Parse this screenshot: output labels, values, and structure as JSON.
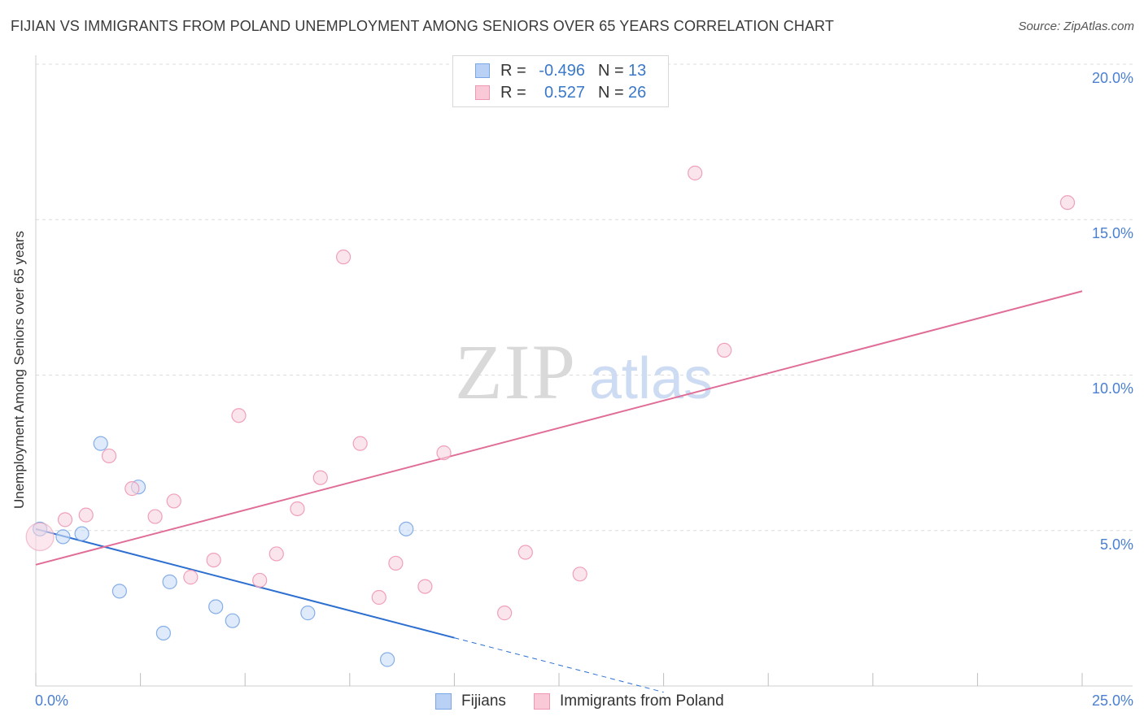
{
  "title": "FIJIAN VS IMMIGRANTS FROM POLAND UNEMPLOYMENT AMONG SENIORS OVER 65 YEARS CORRELATION CHART",
  "source": "Source: ZipAtlas.com",
  "watermark": {
    "zip": "ZIP",
    "atlas": "atlas"
  },
  "legend_top": {
    "rows": [
      {
        "r_label": "R =",
        "r_value": "-0.496",
        "n_label": "N =",
        "n_value": "13",
        "swatch_fill": "#b9d1f4",
        "swatch_border": "#7aa6e6"
      },
      {
        "r_label": "R =",
        "r_value": "0.527",
        "n_label": "N =",
        "n_value": "26",
        "swatch_fill": "#f9c9d8",
        "swatch_border": "#ee97b3"
      }
    ]
  },
  "legend_bottom": [
    {
      "label": "Fijians",
      "swatch_fill": "#b9d1f4",
      "swatch_border": "#7aa6e6"
    },
    {
      "label": "Immigrants from Poland",
      "swatch_fill": "#f9c9d8",
      "swatch_border": "#ee97b3"
    }
  ],
  "chart_data": {
    "type": "scatter",
    "title": "FIJIAN VS IMMIGRANTS FROM POLAND UNEMPLOYMENT AMONG SENIORS OVER 65 YEARS CORRELATION CHART",
    "xlabel": "",
    "ylabel": "Unemployment Among Seniors over 65 years",
    "xlim": [
      0,
      25
    ],
    "ylim": [
      0,
      20
    ],
    "x_tick_labels": [
      "0.0%",
      "25.0%"
    ],
    "y_ticks": [
      {
        "value": 5,
        "label": "5.0%"
      },
      {
        "value": 10,
        "label": "10.0%"
      },
      {
        "value": 15,
        "label": "15.0%"
      },
      {
        "value": 20,
        "label": "20.0%"
      }
    ],
    "grid": true,
    "legend_position": "bottom",
    "series": [
      {
        "name": "Fijians",
        "color": "#7aa6e6",
        "fill": "#c9dcf6",
        "line_color": "#2c6fd0",
        "r": -0.496,
        "n": 13,
        "trend": {
          "x0": 0,
          "y0": 5.05,
          "x1": 10.0,
          "y1": 1.55,
          "x_dash_end": 15.0
        },
        "points": [
          {
            "x": 0.1,
            "y": 5.05
          },
          {
            "x": 0.65,
            "y": 4.8
          },
          {
            "x": 1.1,
            "y": 4.9
          },
          {
            "x": 1.55,
            "y": 7.8
          },
          {
            "x": 2.0,
            "y": 3.05
          },
          {
            "x": 2.45,
            "y": 6.4
          },
          {
            "x": 3.05,
            "y": 1.7
          },
          {
            "x": 3.2,
            "y": 3.35
          },
          {
            "x": 4.3,
            "y": 2.55
          },
          {
            "x": 4.7,
            "y": 2.1
          },
          {
            "x": 6.5,
            "y": 2.35
          },
          {
            "x": 8.4,
            "y": 0.85
          },
          {
            "x": 8.85,
            "y": 5.05
          }
        ]
      },
      {
        "name": "Immigrants from Poland",
        "color": "#ee97b3",
        "fill": "#f9d3e0",
        "line_color": "#e06d97",
        "r": 0.527,
        "n": 26,
        "trend": {
          "x0": 0,
          "y0": 3.9,
          "x1": 25.0,
          "y1": 12.7
        },
        "points": [
          {
            "x": 0.1,
            "y": 4.8,
            "big": true
          },
          {
            "x": 0.7,
            "y": 5.35
          },
          {
            "x": 1.2,
            "y": 5.5
          },
          {
            "x": 1.75,
            "y": 7.4
          },
          {
            "x": 2.3,
            "y": 6.35
          },
          {
            "x": 2.85,
            "y": 5.45
          },
          {
            "x": 3.3,
            "y": 5.95
          },
          {
            "x": 3.7,
            "y": 3.5
          },
          {
            "x": 4.25,
            "y": 4.05
          },
          {
            "x": 4.85,
            "y": 8.7
          },
          {
            "x": 5.35,
            "y": 3.4
          },
          {
            "x": 5.75,
            "y": 4.25
          },
          {
            "x": 6.25,
            "y": 5.7
          },
          {
            "x": 6.8,
            "y": 6.7
          },
          {
            "x": 7.35,
            "y": 13.8
          },
          {
            "x": 7.75,
            "y": 7.8
          },
          {
            "x": 8.2,
            "y": 2.85
          },
          {
            "x": 8.6,
            "y": 3.95
          },
          {
            "x": 9.3,
            "y": 3.2
          },
          {
            "x": 9.75,
            "y": 7.5
          },
          {
            "x": 11.2,
            "y": 2.35
          },
          {
            "x": 11.7,
            "y": 4.3
          },
          {
            "x": 13.0,
            "y": 3.6
          },
          {
            "x": 15.75,
            "y": 16.5
          },
          {
            "x": 16.45,
            "y": 10.8
          },
          {
            "x": 24.65,
            "y": 15.55
          }
        ]
      }
    ]
  }
}
